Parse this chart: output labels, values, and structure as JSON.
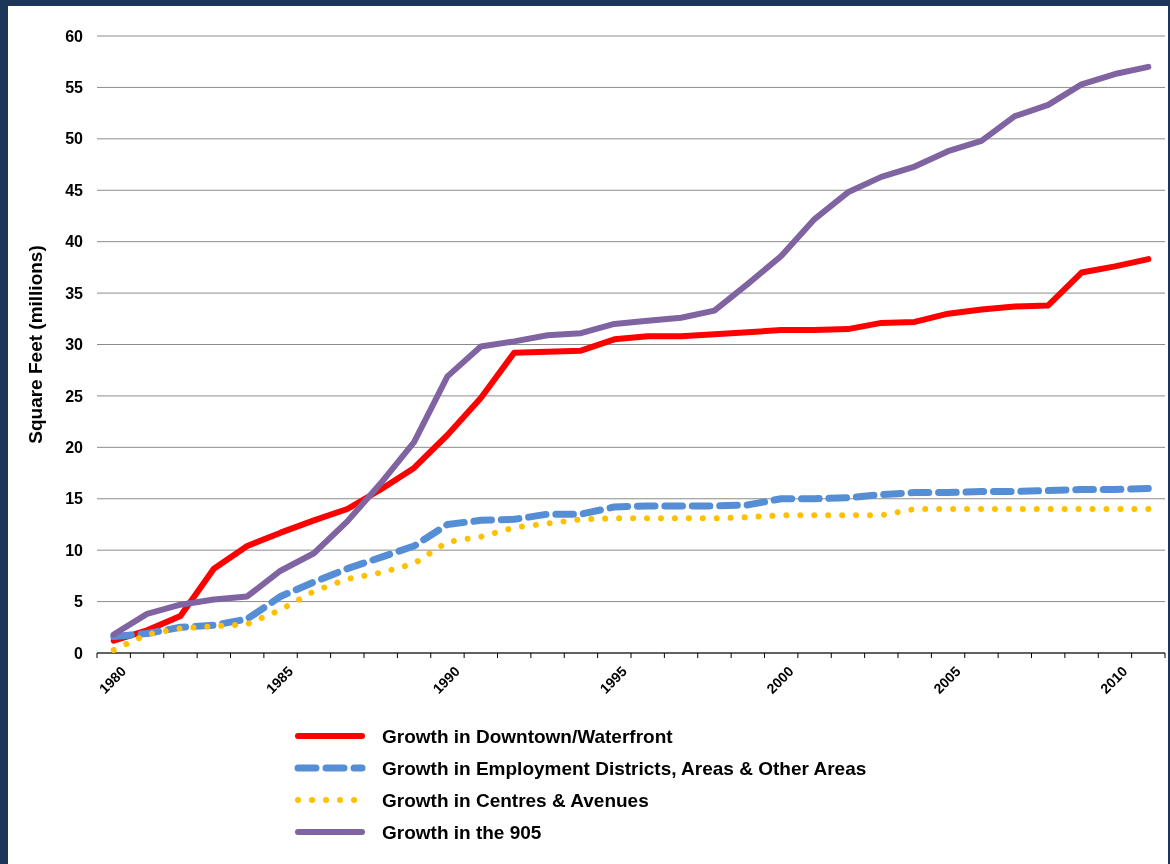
{
  "chart_data": {
    "type": "line",
    "ylabel": "Square Feet (millions)",
    "categories": [
      "1980",
      null,
      null,
      null,
      null,
      "1985",
      null,
      null,
      null,
      null,
      "1990",
      null,
      null,
      null,
      null,
      "1995",
      null,
      null,
      null,
      null,
      "2000",
      null,
      null,
      null,
      null,
      "2005",
      null,
      null,
      null,
      null,
      "2010",
      null
    ],
    "series": [
      {
        "name": "Growth in Downtown/Waterfront",
        "color": "#ff0000",
        "line_style": "solid",
        "values": [
          1.2,
          2.2,
          3.6,
          8.2,
          10.4,
          11.7,
          12.9,
          14.0,
          15.9,
          18.0,
          21.2,
          24.8,
          29.2,
          29.3,
          29.4,
          30.5,
          30.8,
          30.8,
          31.0,
          31.2,
          31.4,
          31.4,
          31.5,
          32.1,
          32.2,
          33.0,
          33.4,
          33.7,
          33.8,
          37.0,
          37.6,
          38.3
        ]
      },
      {
        "name": "Growth in Employment Districts, Areas & Other Areas",
        "color": "#558ed5",
        "line_style": "dashed",
        "values": [
          1.6,
          1.9,
          2.5,
          2.7,
          3.3,
          5.5,
          6.9,
          8.2,
          9.3,
          10.4,
          12.5,
          12.9,
          13.0,
          13.5,
          13.5,
          14.2,
          14.3,
          14.3,
          14.3,
          14.4,
          15.0,
          15.0,
          15.1,
          15.4,
          15.6,
          15.6,
          15.7,
          15.7,
          15.8,
          15.9,
          15.9,
          16.0
        ]
      },
      {
        "name": "Growth in Centres & Avenues",
        "color": "#ffc000",
        "line_style": "dotted",
        "values": [
          0.3,
          1.8,
          2.4,
          2.6,
          2.8,
          4.2,
          6.0,
          7.2,
          7.8,
          8.7,
          10.8,
          11.3,
          12.2,
          12.6,
          13.0,
          13.1,
          13.1,
          13.1,
          13.1,
          13.2,
          13.4,
          13.4,
          13.4,
          13.4,
          14.0,
          14.0,
          14.0,
          14.0,
          14.0,
          14.0,
          14.0,
          14.0
        ]
      },
      {
        "name": "Growth in the 905",
        "color": "#8064a2",
        "line_style": "solid",
        "values": [
          1.8,
          3.8,
          4.7,
          5.2,
          5.5,
          8.0,
          9.7,
          12.8,
          16.5,
          20.5,
          26.9,
          29.8,
          30.3,
          30.9,
          31.1,
          32.0,
          32.3,
          32.6,
          33.3,
          35.9,
          38.6,
          42.2,
          44.8,
          46.3,
          47.3,
          48.8,
          49.8,
          52.2,
          53.3,
          55.3,
          56.3,
          57.0
        ]
      }
    ],
    "ylim": [
      0,
      60
    ],
    "yticks": [
      0,
      5,
      10,
      15,
      20,
      25,
      30,
      35,
      40,
      45,
      50,
      55,
      60
    ],
    "grid": "y",
    "legend": "bottom",
    "marker": "none"
  }
}
